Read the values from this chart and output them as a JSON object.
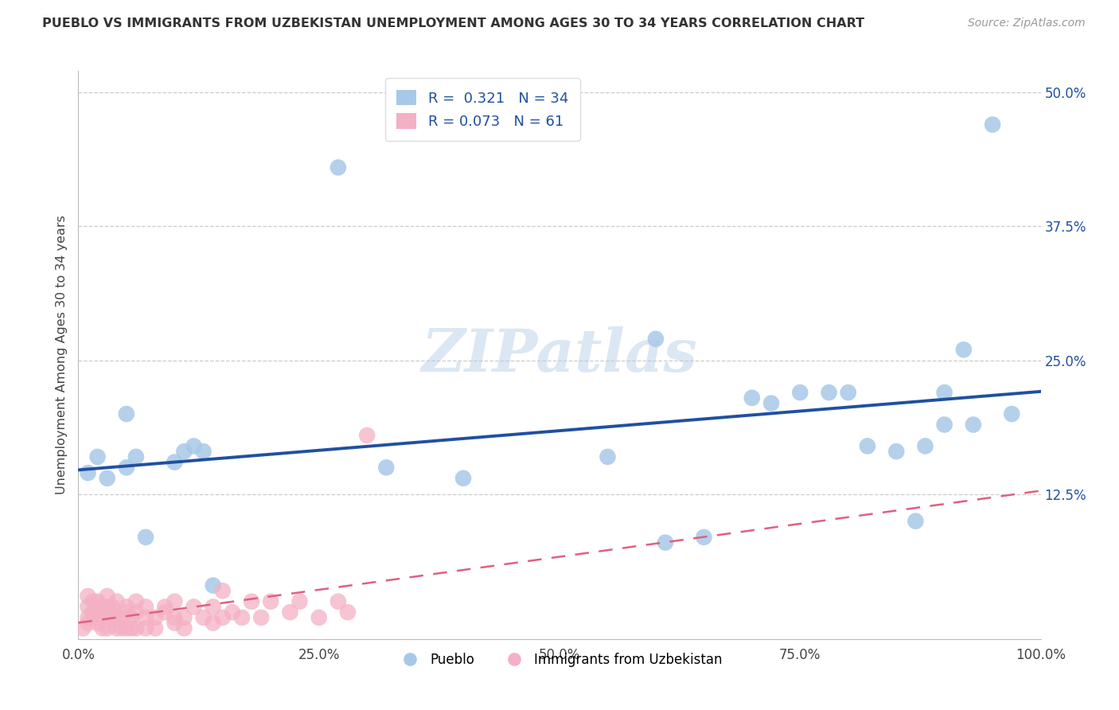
{
  "title": "PUEBLO VS IMMIGRANTS FROM UZBEKISTAN UNEMPLOYMENT AMONG AGES 30 TO 34 YEARS CORRELATION CHART",
  "source": "Source: ZipAtlas.com",
  "ylabel": "Unemployment Among Ages 30 to 34 years",
  "xlabel_ticks": [
    "0.0%",
    "25.0%",
    "50.0%",
    "75.0%",
    "100.0%"
  ],
  "xlabel_vals": [
    0,
    25,
    50,
    75,
    100
  ],
  "ylabel_ticks": [
    "12.5%",
    "25.0%",
    "37.5%",
    "50.0%"
  ],
  "ylabel_vals": [
    12.5,
    25,
    37.5,
    50
  ],
  "xlim": [
    0,
    100
  ],
  "ylim": [
    -1,
    52
  ],
  "pueblo_R": "0.321",
  "pueblo_N": "34",
  "uzbekistan_R": "0.073",
  "uzbekistan_N": "61",
  "pueblo_color": "#a8c8e8",
  "uzbekistan_color": "#f4b0c4",
  "pueblo_line_color": "#2050a0",
  "uzbekistan_line_color": "#e06080",
  "pueblo_x": [
    1,
    2,
    3,
    5,
    5,
    6,
    7,
    10,
    11,
    12,
    13,
    14,
    27,
    32,
    40,
    55,
    60,
    61,
    65,
    70,
    72,
    75,
    78,
    80,
    82,
    85,
    87,
    88,
    90,
    90,
    92,
    93,
    95,
    97
  ],
  "pueblo_y": [
    14.5,
    16,
    14,
    15,
    20,
    16,
    8.5,
    15.5,
    16.5,
    17,
    16.5,
    4,
    43,
    15,
    14,
    16,
    27,
    8,
    8.5,
    21.5,
    21,
    22,
    22,
    22,
    17,
    16.5,
    10,
    17,
    19,
    22,
    26,
    19,
    47,
    20
  ],
  "uzbekistan_x": [
    0.5,
    1,
    1,
    1,
    1,
    1.5,
    1.5,
    2,
    2,
    2,
    2.5,
    2.5,
    2.5,
    3,
    3,
    3,
    3,
    3.5,
    3.5,
    4,
    4,
    4,
    4.5,
    4.5,
    5,
    5,
    5,
    5.5,
    5.5,
    6,
    6,
    6,
    7,
    7,
    7,
    8,
    8,
    9,
    9,
    10,
    10,
    10,
    11,
    11,
    12,
    13,
    14,
    14,
    15,
    15,
    16,
    17,
    18,
    19,
    20,
    22,
    23,
    25,
    27,
    28,
    30
  ],
  "uzbekistan_y": [
    0,
    1,
    2,
    0.5,
    3,
    1.5,
    2.5,
    1,
    0.5,
    2.5,
    1,
    0,
    2,
    1.5,
    2,
    3,
    0,
    1,
    2,
    1,
    0,
    2.5,
    1,
    0,
    1.5,
    2,
    0,
    1,
    0,
    1.5,
    2.5,
    0,
    1,
    0,
    2,
    1,
    0,
    1.5,
    2,
    1,
    0.5,
    2.5,
    1,
    0,
    2,
    1,
    0.5,
    2,
    1,
    3.5,
    1.5,
    1,
    2.5,
    1,
    2.5,
    1.5,
    2.5,
    1,
    2.5,
    1.5,
    18
  ],
  "watermark": "ZIPatlas",
  "background_color": "#ffffff",
  "grid_color": "#cccccc"
}
